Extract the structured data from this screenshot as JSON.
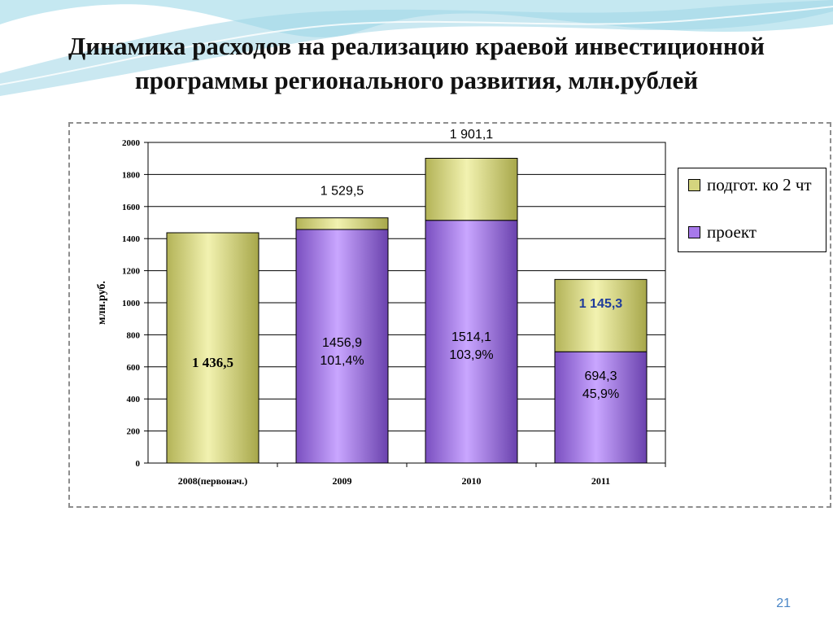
{
  "slide": {
    "title_lines": [
      "Динамика расходов на реализацию краевой инвестиционной",
      "программы регионального развития, млн.рублей"
    ],
    "page_number": "21"
  },
  "colors": {
    "olive": "#d4d47e",
    "violet": "#a779ea",
    "label_blue": "#1f3c9b",
    "wave": "#9fd6e6"
  },
  "chart_data": {
    "type": "bar",
    "stacked": true,
    "title": "",
    "xlabel": "",
    "ylabel": "млн.руб.",
    "ylim": [
      0,
      2000
    ],
    "yticks": [
      0,
      200,
      400,
      600,
      800,
      1000,
      1200,
      1400,
      1600,
      1800,
      2000
    ],
    "grid": true,
    "legend_position": "right",
    "categories": [
      "2008(первонач.)",
      "2009",
      "2010",
      "2011"
    ],
    "series": [
      {
        "name": "проект",
        "color": "#a779ea",
        "values": [
          0,
          1456.9,
          1514.1,
          694.3
        ]
      },
      {
        "name": "подгот. ко 2 чт",
        "color": "#d4d47e",
        "values": [
          1436.5,
          72.6,
          387.0,
          451.0
        ]
      }
    ],
    "inner_labels": [
      [
        "1 436,5"
      ],
      [
        "1456,9",
        "101,4%"
      ],
      [
        "1514,1",
        "103,9%"
      ],
      [
        "694,3",
        "45,9%"
      ]
    ],
    "total_labels": [
      "",
      "1 529,5",
      "1 901,1",
      "1 145,3"
    ]
  }
}
